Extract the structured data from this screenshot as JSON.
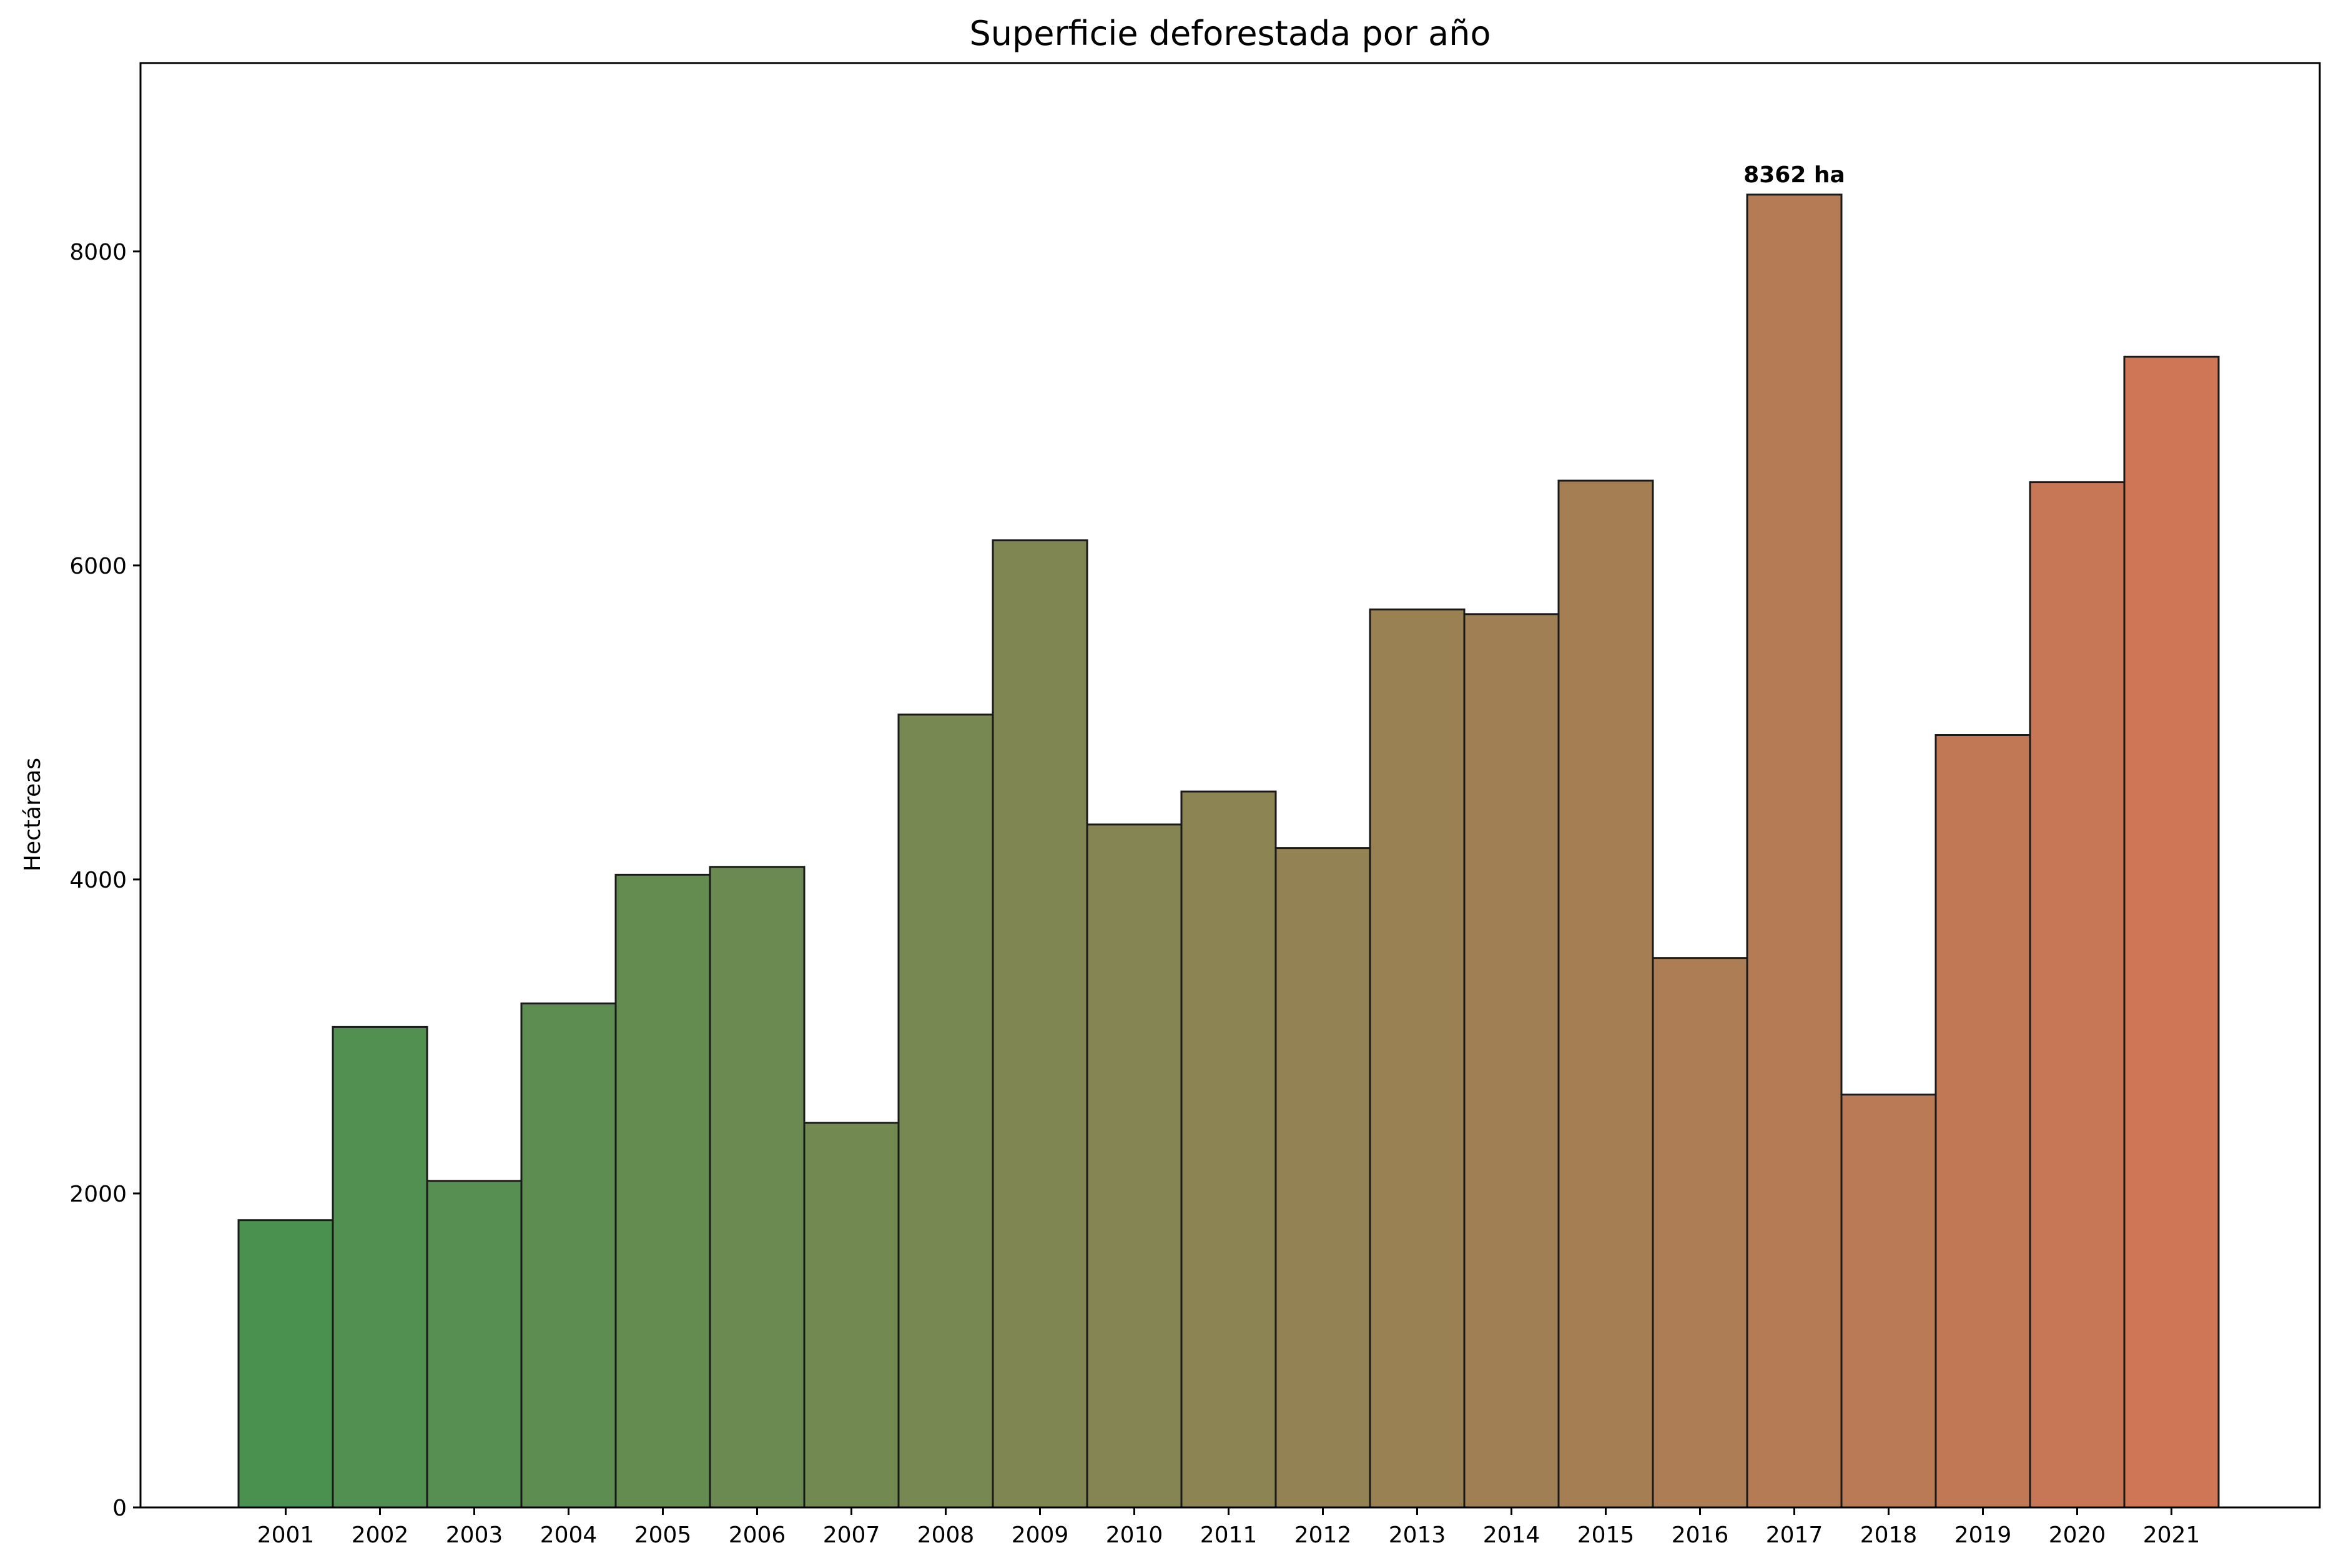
{
  "chart_data": {
    "type": "bar",
    "title": "Superficie deforestada por año",
    "xlabel": "",
    "ylabel": "Hectáreas",
    "categories": [
      "2001",
      "2002",
      "2003",
      "2004",
      "2005",
      "2006",
      "2007",
      "2008",
      "2009",
      "2010",
      "2011",
      "2012",
      "2013",
      "2014",
      "2015",
      "2016",
      "2017",
      "2018",
      "2019",
      "2020",
      "2021"
    ],
    "values": [
      1830,
      3060,
      2080,
      3210,
      4030,
      4080,
      2450,
      5050,
      6160,
      4350,
      4560,
      4200,
      5720,
      5690,
      6540,
      3500,
      8362,
      2630,
      4920,
      6530,
      7330
    ],
    "ylim": [
      0,
      9200
    ],
    "yticks": [
      0,
      2000,
      4000,
      6000,
      8000
    ],
    "annotation": {
      "category": "2017",
      "text": "8362 ha"
    },
    "colors": {
      "start": "#4a9150",
      "end": "#ce7656",
      "edge": "#1a1a1a"
    },
    "grid": false,
    "legend": "none"
  }
}
